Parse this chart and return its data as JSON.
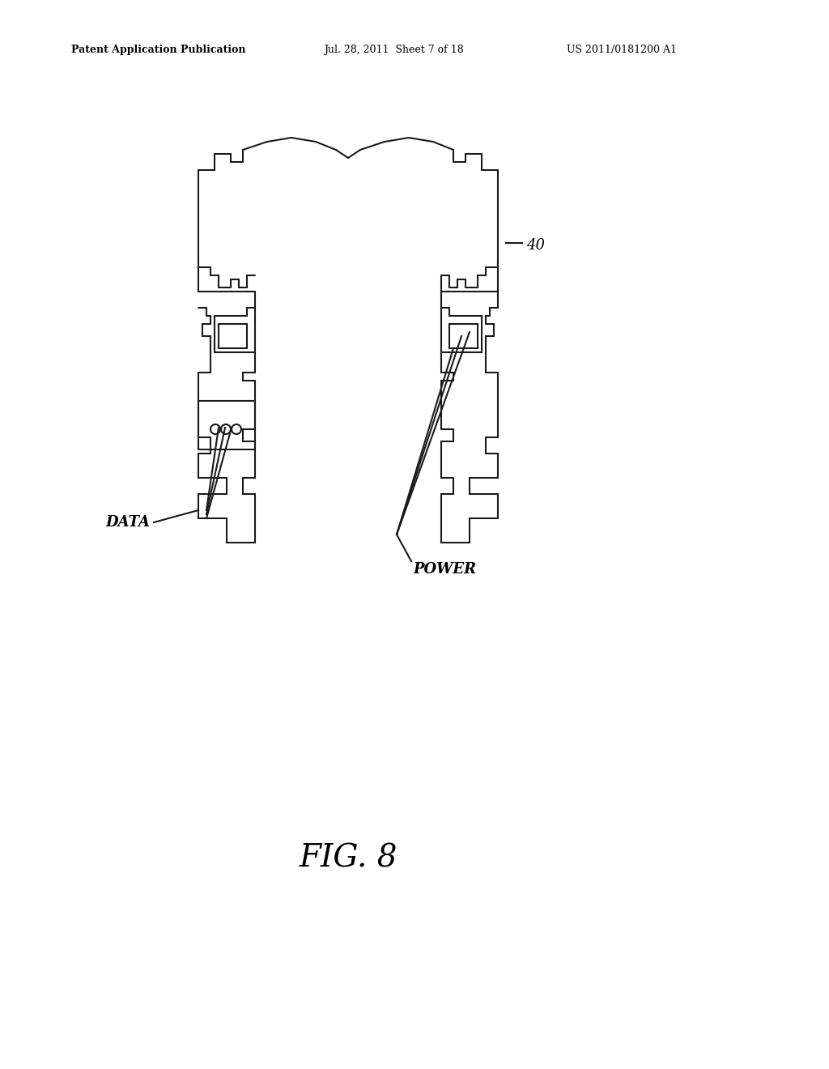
{
  "bg_color": "#ffffff",
  "line_color": "#1a1a1a",
  "line_width": 1.5,
  "header_left": "Patent Application Publication",
  "header_center": "Jul. 28, 2011  Sheet 7 of 18",
  "header_right": "US 2011/0181200 A1",
  "label_40": "40",
  "label_data": "DATA",
  "label_power": "POWER",
  "fig_label": "FIG. 8",
  "fig_label_fontsize": 28
}
